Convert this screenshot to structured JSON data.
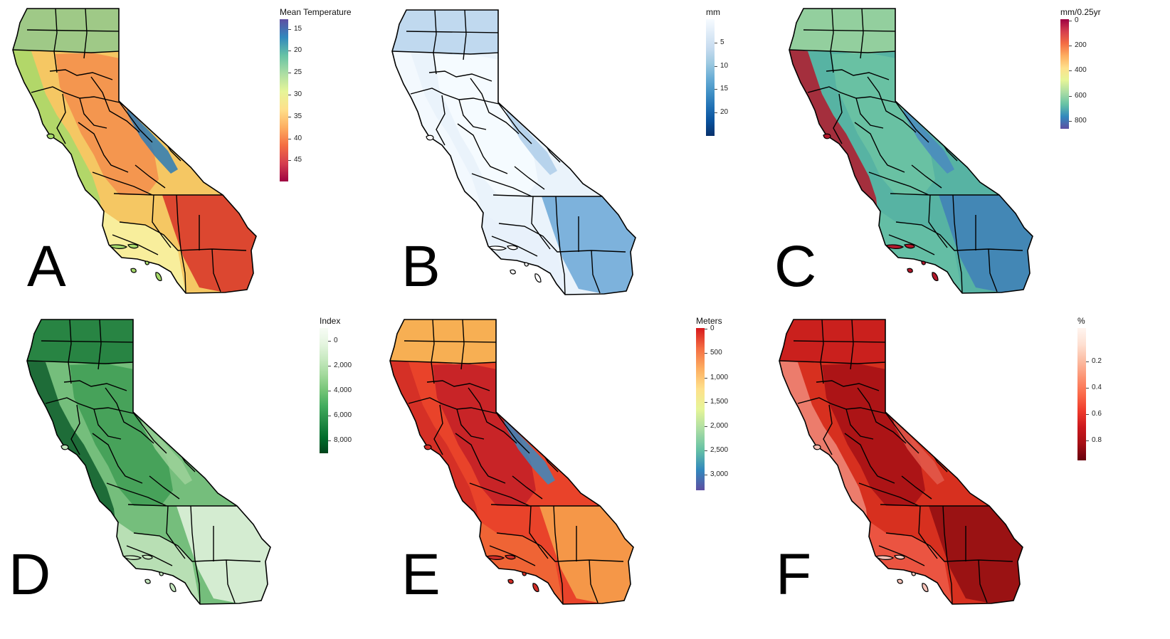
{
  "panels": [
    {
      "letter": "A",
      "legend_title": "Mean Temperature",
      "legend_ticks": [
        "15",
        "20",
        "25",
        "30",
        "35",
        "40",
        "45"
      ],
      "tick_positions": [
        0.06,
        0.195,
        0.33,
        0.465,
        0.6,
        0.735,
        0.87
      ],
      "colors": {
        "base": "#f5c763",
        "north": "#8fc98d",
        "coast": "#a6d96a",
        "central": "#f38d4b",
        "sierra": "#2c7bb6",
        "desert": "#d73027",
        "south": "#f8f4a6",
        "islands": "#a6d96a"
      },
      "bar_gradient": [
        "#5e4fa2",
        "#3288bd",
        "#66c2a5",
        "#abdda4",
        "#e6f598",
        "#fee08b",
        "#fdae61",
        "#f46d43",
        "#d53e4f",
        "#9e0142"
      ]
    },
    {
      "letter": "B",
      "legend_title": "mm",
      "legend_ticks": [
        "5",
        "10",
        "15",
        "20"
      ],
      "tick_positions": [
        0.2,
        0.4,
        0.6,
        0.8
      ],
      "colors": {
        "base": "#eaf3fb",
        "north": "#b8d4ec",
        "coast": "#f4f9fe",
        "central": "#f7fbff",
        "sierra": "#aecde9",
        "desert": "#6aa6d6",
        "south": "#e7f0fa",
        "islands": "#ffffff"
      },
      "bar_gradient": [
        "#f7fbff",
        "#deebf7",
        "#c6dbef",
        "#9ecae1",
        "#6baed6",
        "#4292c6",
        "#2171b5",
        "#08519c",
        "#08306b"
      ]
    },
    {
      "letter": "C",
      "legend_title": "mm/0.25yr",
      "legend_ticks": [
        "0",
        "200",
        "400",
        "600",
        "800"
      ],
      "tick_positions": [
        0.01,
        0.24,
        0.47,
        0.7,
        0.93
      ],
      "colors": {
        "base": "#57b3a3",
        "north": "#9ed49e",
        "coast": "#b2182b",
        "central": "#6cc3a3",
        "sierra": "#4a89bf",
        "desert": "#3f7fb8",
        "south": "#66bfa6",
        "islands": "#b2182b"
      },
      "bar_gradient": [
        "#9e0142",
        "#d53e4f",
        "#f46d43",
        "#fdae61",
        "#fee08b",
        "#e6f598",
        "#abdda4",
        "#66c2a5",
        "#3288bd",
        "#5e4fa2"
      ]
    },
    {
      "letter": "D",
      "legend_title": "Index",
      "legend_ticks": [
        "0",
        "2,000",
        "4,000",
        "6,000",
        "8,000"
      ],
      "tick_positions": [
        0.1,
        0.3,
        0.5,
        0.7,
        0.9
      ],
      "colors": {
        "base": "#75be7c",
        "north": "#1b7a3a",
        "coast": "#0f5e2d",
        "central": "#3f9d55",
        "sierra": "#9dd29a",
        "desert": "#e5f4e1",
        "south": "#c4e5be",
        "islands": "#c4e5be"
      },
      "bar_gradient": [
        "#f7fcf5",
        "#e5f5e0",
        "#c7e9c0",
        "#a1d99b",
        "#74c476",
        "#41ab5d",
        "#238b45",
        "#006d2c",
        "#00441b"
      ]
    },
    {
      "letter": "E",
      "legend_title": "Meters",
      "legend_ticks": [
        "0",
        "500",
        "1,000",
        "1,500",
        "2,000",
        "2,500",
        "3,000"
      ],
      "tick_positions": [
        0.005,
        0.155,
        0.305,
        0.455,
        0.605,
        0.755,
        0.905
      ],
      "colors": {
        "base": "#e9432a",
        "north": "#f9c25a",
        "coast": "#d12d26",
        "central": "#c21f27",
        "sierra": "#3b89bf",
        "desert": "#f7a64d",
        "south": "#f06a37",
        "islands": "#d12d26"
      },
      "bar_gradient": [
        "#d7191c",
        "#f46d43",
        "#fdae61",
        "#fee08b",
        "#e6f598",
        "#abdda4",
        "#66c2a5",
        "#3288bd",
        "#5e4fa2"
      ]
    },
    {
      "letter": "F",
      "legend_title": "%",
      "legend_ticks": [
        "0.2",
        "0.4",
        "0.6",
        "0.8"
      ],
      "tick_positions": [
        0.25,
        0.45,
        0.65,
        0.85
      ],
      "colors": {
        "base": "#d7301f",
        "north": "#c81d1d",
        "coast": "#f08a7a",
        "central": "#a50f15",
        "sierra": "#e35a4c",
        "desert": "#8f0d12",
        "south": "#ef5b48",
        "islands": "#f7c2b8"
      },
      "bar_gradient": [
        "#fff5f0",
        "#fee0d2",
        "#fcbba1",
        "#fc9272",
        "#fb6a4a",
        "#ef3b2c",
        "#cb181d",
        "#a50f15",
        "#67000d"
      ]
    }
  ]
}
